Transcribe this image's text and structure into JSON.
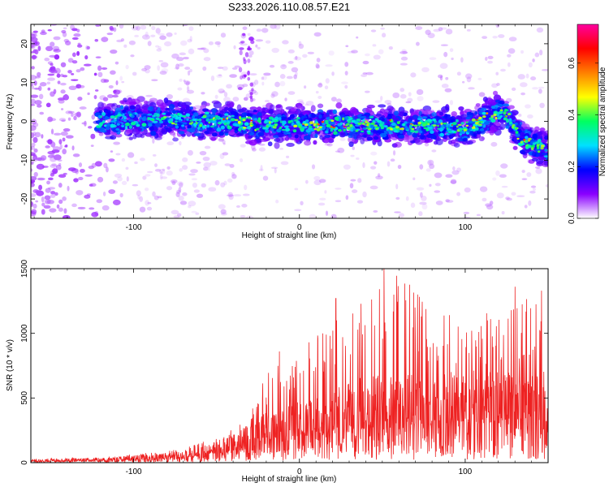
{
  "page_title": "S233.2026.110.08.57.E21",
  "colors": {
    "snr_line": "#ee2222",
    "frame": "#000000"
  },
  "chart_data": [
    {
      "type": "heatmap",
      "xlabel": "Height of straight line (km)",
      "ylabel": "Frequency (Hz)",
      "xlim": [
        -162,
        150
      ],
      "ylim": [
        -25,
        25
      ],
      "x_ticks": [
        -100,
        0,
        100
      ],
      "y_ticks": [
        -20,
        -10,
        0,
        10,
        20
      ],
      "x_tick_labels": [
        "-100",
        "0",
        "100"
      ],
      "y_tick_labels": [
        "-20",
        "-10",
        "0",
        "10",
        "20"
      ],
      "colorbar": {
        "label": "Normalized spectral amplitude",
        "range": [
          0,
          0.75
        ],
        "ticks": [
          "0.0",
          "0.2",
          "0.4",
          "0.6"
        ],
        "tick_values": [
          0,
          0.2,
          0.4,
          0.6
        ],
        "colormap": [
          "#ffffff",
          "#8a00ff",
          "#0000ff",
          "#00e0ff",
          "#00ff60",
          "#ffff00",
          "#ff8000",
          "#ff0000",
          "#ff00a0"
        ]
      },
      "band_center_hz": [
        [
          -120,
          0
        ],
        [
          -100,
          0.5
        ],
        [
          -80,
          0.5
        ],
        [
          -60,
          0
        ],
        [
          -40,
          0
        ],
        [
          -20,
          -1
        ],
        [
          0,
          -1
        ],
        [
          20,
          -1
        ],
        [
          40,
          -1
        ],
        [
          60,
          -1
        ],
        [
          80,
          -1
        ],
        [
          100,
          -2
        ],
        [
          110,
          0
        ],
        [
          118,
          2
        ],
        [
          125,
          2
        ],
        [
          132,
          -4
        ],
        [
          140,
          -6
        ],
        [
          150,
          -7
        ]
      ],
      "band_halfwidth_hz": 4
    },
    {
      "type": "line",
      "xlabel": "Height of straight line (km)",
      "ylabel": "SNR (10 * v/v)",
      "xlim": [
        -162,
        150
      ],
      "ylim": [
        0,
        1500
      ],
      "x_ticks": [
        -100,
        0,
        100
      ],
      "y_ticks": [
        0,
        500,
        1000,
        1500
      ],
      "x_tick_labels": [
        "-100",
        "0",
        "100"
      ],
      "y_tick_labels": [
        "0",
        "500",
        "1000",
        "1500"
      ],
      "envelope": {
        "x": [
          -162,
          -120,
          -80,
          -60,
          -40,
          -30,
          -20,
          0,
          20,
          40,
          60,
          80,
          100,
          120,
          140,
          150
        ],
        "mean": [
          15,
          25,
          50,
          80,
          150,
          200,
          260,
          320,
          380,
          450,
          470,
          460,
          480,
          470,
          460,
          480
        ],
        "peak": [
          30,
          40,
          90,
          150,
          280,
          360,
          720,
          850,
          1150,
          1250,
          1500,
          1200,
          1100,
          1250,
          1330,
          1000
        ]
      },
      "highlights": [
        {
          "x": 51,
          "y": 1500
        },
        {
          "x": 22,
          "y": 1270
        },
        {
          "x": 130,
          "y": 1360
        },
        {
          "x": 146,
          "y": 1330
        },
        {
          "x": -12,
          "y": 860
        }
      ]
    }
  ]
}
